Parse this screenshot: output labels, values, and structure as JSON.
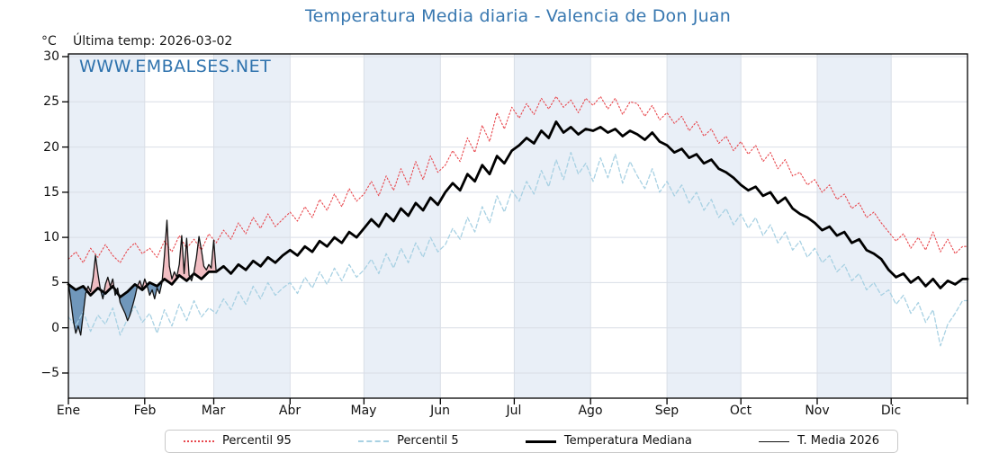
{
  "watermark": "WWW.EMBALSES.NET",
  "colors": {
    "title": "#3777b0",
    "watermark": "#2e72ad",
    "p95_line": "#e8474d",
    "p5_line": "#a8d1e3",
    "median_line": "#000000",
    "t2026_line": "#111111",
    "fill_above_median": "#f0b3b8",
    "fill_below_median": "#5b87b0",
    "month_band": "#e9eff7",
    "grid": "#d9dee6",
    "frame": "#000000"
  },
  "legend": {
    "items": [
      {
        "label": "Percentil 95"
      },
      {
        "label": "Percentil 5"
      },
      {
        "label": "Temperatura Mediana"
      },
      {
        "label": "T. Media 2026"
      }
    ]
  },
  "chart_data": {
    "type": "line",
    "title": "Temperatura Media diaria - Valencia de Don Juan",
    "ylabel": "°C",
    "annotation": "Última temp: 2026-03-02",
    "x_unit": "day_of_year",
    "ylim": [
      -7.8,
      30.3
    ],
    "yticks": [
      30,
      25,
      20,
      15,
      10,
      5,
      0,
      -5
    ],
    "ytick_labels": [
      "30",
      "25",
      "20",
      "15",
      "10",
      "5",
      "0",
      "−5"
    ],
    "xtick_labels": [
      "Ene",
      "Feb",
      "Mar",
      "Abr",
      "May",
      "Jun",
      "Jul",
      "Ago",
      "Sep",
      "Oct",
      "Nov",
      "Dic"
    ],
    "month_start_days": [
      1,
      32,
      60,
      91,
      121,
      152,
      182,
      213,
      244,
      274,
      305,
      335,
      366
    ],
    "shaded_months": [
      "Ene",
      "Mar",
      "May",
      "Jul",
      "Sep",
      "Nov"
    ],
    "grid": true,
    "legend_position": "bottom",
    "series": [
      {
        "name": "Percentil 95",
        "start_day": 1,
        "days_step": 3,
        "values": [
          7.6,
          8.4,
          7.2,
          8.8,
          7.8,
          9.2,
          8.0,
          7.2,
          8.6,
          9.4,
          8.2,
          8.8,
          7.8,
          9.6,
          8.4,
          10.2,
          8.8,
          9.8,
          8.6,
          10.4,
          9.4,
          10.8,
          9.8,
          11.6,
          10.4,
          12.2,
          11.0,
          12.6,
          11.2,
          12.0,
          12.8,
          11.8,
          13.4,
          12.2,
          14.2,
          13.0,
          14.8,
          13.4,
          15.4,
          14.0,
          14.8,
          16.2,
          14.6,
          16.8,
          15.2,
          17.6,
          15.8,
          18.4,
          16.4,
          19.0,
          17.2,
          18.0,
          19.6,
          18.4,
          21.0,
          19.4,
          22.4,
          20.6,
          23.8,
          22.0,
          24.4,
          23.2,
          24.8,
          23.6,
          25.4,
          24.2,
          25.6,
          24.4,
          25.2,
          23.8,
          25.4,
          24.6,
          25.6,
          24.2,
          25.4,
          23.6,
          25.0,
          24.8,
          23.4,
          24.6,
          23.0,
          23.8,
          22.6,
          23.4,
          21.8,
          22.8,
          21.2,
          22.0,
          20.4,
          21.2,
          19.6,
          20.6,
          19.2,
          20.2,
          18.4,
          19.4,
          17.6,
          18.6,
          16.8,
          17.2,
          15.8,
          16.4,
          15.0,
          15.8,
          14.2,
          14.8,
          13.2,
          13.8,
          12.2,
          12.8,
          11.6,
          10.6,
          9.6,
          10.4,
          8.8,
          10.0,
          8.6,
          10.6,
          8.4,
          9.8,
          8.2,
          9.0
        ]
      },
      {
        "name": "Percentil 5",
        "start_day": 1,
        "days_step": 3,
        "values": [
          1.2,
          0.2,
          1.8,
          -0.4,
          1.4,
          0.4,
          2.2,
          -0.8,
          1.0,
          2.4,
          0.6,
          1.6,
          -0.6,
          2.0,
          0.2,
          2.6,
          0.8,
          3.0,
          1.2,
          2.2,
          1.6,
          3.2,
          2.0,
          4.0,
          2.6,
          4.6,
          3.2,
          5.0,
          3.6,
          4.4,
          5.0,
          3.8,
          5.6,
          4.4,
          6.2,
          4.8,
          6.6,
          5.2,
          7.0,
          5.6,
          6.4,
          7.6,
          6.0,
          8.2,
          6.6,
          8.8,
          7.2,
          9.4,
          7.8,
          10.0,
          8.4,
          9.2,
          11.0,
          9.8,
          12.2,
          10.6,
          13.4,
          11.6,
          14.6,
          12.8,
          15.2,
          14.0,
          16.2,
          14.8,
          17.4,
          15.6,
          18.6,
          16.4,
          19.4,
          17.0,
          18.2,
          16.2,
          18.8,
          16.6,
          19.2,
          16.0,
          18.4,
          16.8,
          15.4,
          17.6,
          15.0,
          16.2,
          14.6,
          15.8,
          13.8,
          15.0,
          13.0,
          14.2,
          12.2,
          13.2,
          11.4,
          12.6,
          11.0,
          12.2,
          10.2,
          11.4,
          9.4,
          10.6,
          8.6,
          9.6,
          7.8,
          8.8,
          7.2,
          8.0,
          6.2,
          7.0,
          5.2,
          6.0,
          4.2,
          5.0,
          3.6,
          4.2,
          2.6,
          3.6,
          1.6,
          2.8,
          0.6,
          2.0,
          -2.0,
          0.4,
          1.6,
          3.0
        ]
      },
      {
        "name": "Temperatura Mediana",
        "start_day": 1,
        "days_step": 3,
        "values": [
          4.8,
          4.2,
          4.6,
          3.6,
          4.4,
          3.8,
          4.6,
          3.4,
          4.0,
          4.8,
          4.2,
          5.0,
          4.6,
          5.4,
          4.8,
          5.8,
          5.2,
          6.0,
          5.4,
          6.2,
          6.2,
          6.8,
          6.0,
          7.0,
          6.4,
          7.4,
          6.8,
          7.8,
          7.2,
          8.0,
          8.6,
          8.0,
          9.0,
          8.4,
          9.6,
          9.0,
          10.0,
          9.4,
          10.6,
          10.0,
          11.0,
          12.0,
          11.2,
          12.6,
          11.8,
          13.2,
          12.4,
          13.8,
          13.0,
          14.4,
          13.6,
          15.0,
          16.0,
          15.2,
          17.0,
          16.2,
          18.0,
          17.0,
          19.0,
          18.2,
          19.6,
          20.2,
          21.0,
          20.4,
          21.8,
          21.0,
          22.8,
          21.6,
          22.2,
          21.4,
          22.0,
          21.8,
          22.2,
          21.6,
          22.0,
          21.2,
          21.8,
          21.4,
          20.8,
          21.6,
          20.6,
          20.2,
          19.4,
          19.8,
          18.8,
          19.2,
          18.2,
          18.6,
          17.6,
          17.2,
          16.6,
          15.8,
          15.2,
          15.6,
          14.6,
          15.0,
          13.8,
          14.4,
          13.2,
          12.6,
          12.2,
          11.6,
          10.8,
          11.2,
          10.2,
          10.6,
          9.4,
          9.8,
          8.6,
          8.2,
          7.6,
          6.4,
          5.6,
          6.0,
          5.0,
          5.6,
          4.6,
          5.4,
          4.4,
          5.2,
          4.8,
          5.4
        ]
      },
      {
        "name": "T. Media 2026",
        "start_day": 1,
        "days_step": 1,
        "values": [
          5.0,
          3.0,
          0.8,
          -0.6,
          0.2,
          -0.8,
          1.5,
          3.8,
          4.6,
          4.0,
          5.5,
          8.0,
          6.0,
          4.2,
          3.2,
          4.8,
          5.6,
          4.6,
          5.4,
          3.6,
          4.4,
          2.8,
          2.2,
          1.6,
          0.8,
          1.4,
          2.4,
          3.4,
          4.6,
          5.2,
          4.4,
          5.4,
          4.6,
          3.6,
          4.2,
          3.2,
          4.4,
          3.8,
          5.0,
          8.0,
          11.9,
          6.8,
          5.4,
          6.2,
          5.6,
          7.0,
          10.2,
          6.0,
          9.9,
          5.8,
          5.2,
          6.2,
          7.8,
          10.1,
          8.6,
          6.8,
          6.4,
          7.0,
          6.6,
          9.7,
          6.2
        ]
      }
    ]
  }
}
